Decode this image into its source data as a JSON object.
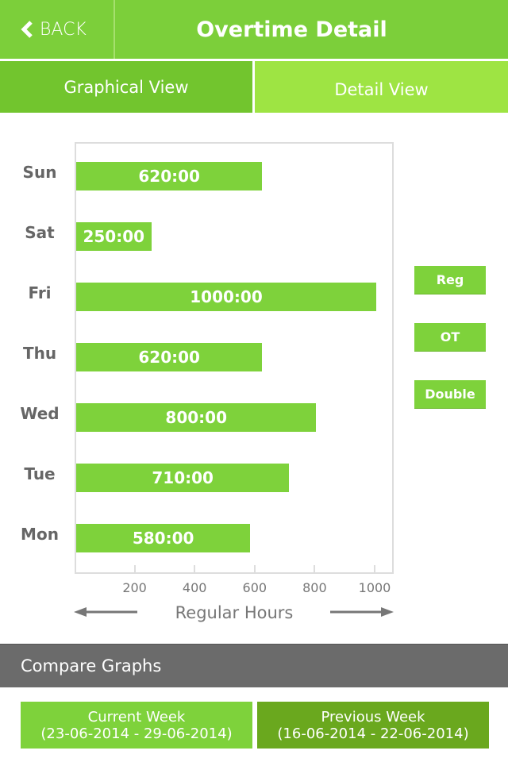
{
  "header": {
    "back_label": "BACK",
    "title": "Overtime Detail"
  },
  "tabs": [
    {
      "label": "Graphical View",
      "active": true
    },
    {
      "label": "Detail View",
      "active": false
    }
  ],
  "chart_data": {
    "type": "bar",
    "orientation": "horizontal",
    "categories": [
      "Sun",
      "Sat",
      "Fri",
      "Thu",
      "Wed",
      "Tue",
      "Mon"
    ],
    "values": [
      620,
      250,
      1000,
      620,
      800,
      710,
      580
    ],
    "data_labels": [
      "620:00",
      "250:00",
      "1000:00",
      "620:00",
      "800:00",
      "710:00",
      "580:00"
    ],
    "xlabel": "Regular Hours",
    "xticks": [
      200,
      400,
      600,
      800,
      1000
    ],
    "xlim": [
      0,
      1000
    ],
    "color": "#7ed23b"
  },
  "legend": [
    {
      "label": "Reg"
    },
    {
      "label": "OT"
    },
    {
      "label": "Double"
    }
  ],
  "compare": {
    "title": "Compare Graphs",
    "current": {
      "label": "Current Week",
      "range": "(23-06-2014 - 29-06-2014)"
    },
    "previous": {
      "label": "Previous Week",
      "range": "(16-06-2014 - 22-06-2014)"
    }
  },
  "colors": {
    "primary": "#7ccf3a",
    "active_tab": "#72c52e",
    "inactive_tab": "#9ee443",
    "dark_green": "#6aa81e",
    "section_gray": "#6b6b6b"
  }
}
